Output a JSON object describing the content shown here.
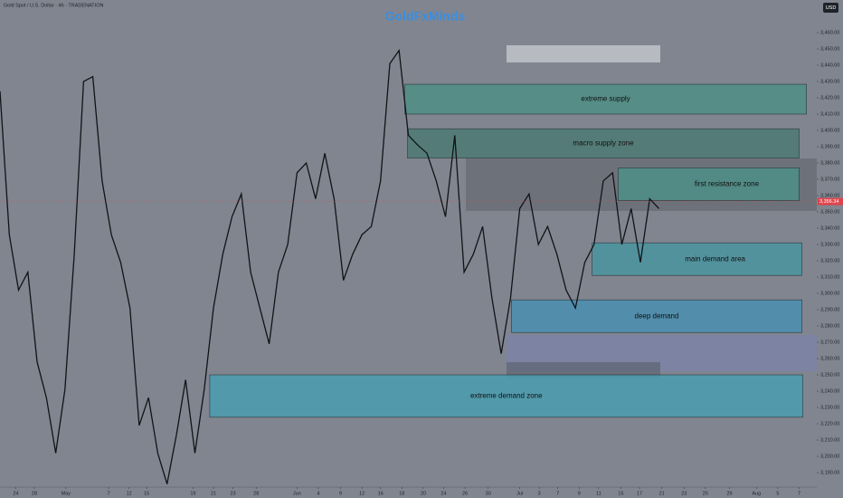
{
  "chart_data": {
    "type": "line",
    "title": "GoldFxMinds",
    "symbol": "Gold Spot / U.S. Dollar · 4h · TRADENATION",
    "currency": "USD",
    "color": "#111316",
    "x": [
      0,
      1,
      2,
      3,
      4,
      5,
      6,
      7,
      8,
      9,
      10,
      11,
      12,
      13,
      14,
      15,
      16,
      17,
      18,
      19,
      20,
      21,
      22,
      23,
      24,
      25,
      26,
      27,
      28,
      29,
      30,
      31,
      32,
      33,
      34,
      35,
      36,
      37,
      38,
      39,
      40,
      41,
      42,
      43,
      44,
      45,
      46,
      47,
      48,
      49,
      50,
      51,
      52,
      53,
      54,
      55,
      56,
      57,
      58,
      59,
      60,
      61,
      62,
      63,
      64,
      65,
      66,
      67,
      68,
      69,
      70,
      71
    ],
    "values": [
      3424,
      3336,
      3302,
      3313,
      3258,
      3236,
      3202,
      3241,
      3324,
      3430,
      3433,
      3369,
      3336,
      3319,
      3291,
      3219,
      3236,
      3202,
      3183,
      3213,
      3247,
      3202,
      3241,
      3291,
      3324,
      3347,
      3361,
      3313,
      3291,
      3269,
      3313,
      3330,
      3374,
      3380,
      3358,
      3386,
      3358,
      3308,
      3324,
      3336,
      3341,
      3369,
      3441,
      3449,
      3397,
      3391,
      3386,
      3369,
      3347,
      3397,
      3313,
      3324,
      3341,
      3297,
      3263,
      3297,
      3352,
      3361,
      3330,
      3341,
      3324,
      3302,
      3291,
      3319,
      3330,
      3369,
      3374,
      3330,
      3352,
      3319,
      3358,
      3352
    ],
    "xlim": [
      0,
      88
    ],
    "ylim": [
      3180,
      3480
    ],
    "xticks": [
      {
        "value": 1.7,
        "label": "24"
      },
      {
        "value": 3.7,
        "label": "28"
      },
      {
        "value": 7.1,
        "label": "May"
      },
      {
        "value": 11.7,
        "label": "7"
      },
      {
        "value": 13.9,
        "label": "12"
      },
      {
        "value": 15.8,
        "label": "15"
      },
      {
        "value": 20.8,
        "label": "19"
      },
      {
        "value": 23,
        "label": "21"
      },
      {
        "value": 25.1,
        "label": "23"
      },
      {
        "value": 27.6,
        "label": "28"
      },
      {
        "value": 32,
        "label": "Jun"
      },
      {
        "value": 34.3,
        "label": "4"
      },
      {
        "value": 36.7,
        "label": "9"
      },
      {
        "value": 39,
        "label": "12"
      },
      {
        "value": 41,
        "label": "16"
      },
      {
        "value": 43.3,
        "label": "18"
      },
      {
        "value": 45.6,
        "label": "20"
      },
      {
        "value": 47.8,
        "label": "24"
      },
      {
        "value": 50.1,
        "label": "26"
      },
      {
        "value": 52.6,
        "label": "30"
      },
      {
        "value": 56,
        "label": "Jul"
      },
      {
        "value": 58.1,
        "label": "3"
      },
      {
        "value": 60.1,
        "label": "7"
      },
      {
        "value": 62.4,
        "label": "9"
      },
      {
        "value": 64.5,
        "label": "11"
      },
      {
        "value": 66.9,
        "label": "15"
      },
      {
        "value": 68.9,
        "label": "17"
      },
      {
        "value": 71.3,
        "label": "21"
      },
      {
        "value": 73.7,
        "label": "23"
      },
      {
        "value": 76,
        "label": "25"
      },
      {
        "value": 78.6,
        "label": "29"
      },
      {
        "value": 81.5,
        "label": "Aug"
      },
      {
        "value": 83.8,
        "label": "5"
      },
      {
        "value": 86.1,
        "label": "7"
      }
    ],
    "yticks": [
      {
        "value": 3190,
        "label": "3,190.00"
      },
      {
        "value": 3200,
        "label": "3,200.00"
      },
      {
        "value": 3210,
        "label": "3,210.00"
      },
      {
        "value": 3220,
        "label": "3,220.00"
      },
      {
        "value": 3230,
        "label": "3,230.00"
      },
      {
        "value": 3240,
        "label": "3,240.00"
      },
      {
        "value": 3250,
        "label": "3,250.00"
      },
      {
        "value": 3260,
        "label": "3,260.00"
      },
      {
        "value": 3270,
        "label": "3,270.00"
      },
      {
        "value": 3280,
        "label": "3,280.00"
      },
      {
        "value": 3290,
        "label": "3,290.00"
      },
      {
        "value": 3300,
        "label": "3,300.00"
      },
      {
        "value": 3310,
        "label": "3,310.00"
      },
      {
        "value": 3320,
        "label": "3,320.00"
      },
      {
        "value": 3330,
        "label": "3,330.00"
      },
      {
        "value": 3340,
        "label": "3,340.00"
      },
      {
        "value": 3350,
        "label": "3,350.00"
      },
      {
        "value": 3360,
        "label": "3,360.00"
      },
      {
        "value": 3370,
        "label": "3,370.00"
      },
      {
        "value": 3380,
        "label": "3,380.00"
      },
      {
        "value": 3390,
        "label": "3,390.00"
      },
      {
        "value": 3400,
        "label": "3,400.00"
      },
      {
        "value": 3410,
        "label": "3,410.00"
      },
      {
        "value": 3420,
        "label": "3,420.00"
      },
      {
        "value": 3430,
        "label": "3,430.00"
      },
      {
        "value": 3440,
        "label": "3,440.00"
      },
      {
        "value": 3450,
        "label": "3,450.00"
      },
      {
        "value": 3460,
        "label": "3,460.00"
      }
    ],
    "last_price": {
      "value": 3356.34,
      "label": "3,356.34",
      "color": "#e0444c"
    },
    "zones": [
      {
        "label": "extreme supply",
        "low": 3410,
        "high": 3428.3,
        "x": [
          43.6,
          86.9
        ],
        "color": "#4f8f86"
      },
      {
        "label": "macro supply zone",
        "low": 3383,
        "high": 3401,
        "x": [
          43.9,
          86.1
        ],
        "color": "#4d7a73"
      },
      {
        "label": "first resistance zone",
        "low": 3357,
        "high": 3377,
        "x": [
          66.6,
          86.1
        ],
        "color": "#4e8f88"
      },
      {
        "label": "main demand area",
        "low": 3311,
        "high": 3331,
        "x": [
          63.8,
          86.4
        ],
        "color": "#4b95a0"
      },
      {
        "label": "deep demand",
        "low": 3276,
        "high": 3296,
        "x": [
          55.1,
          86.4
        ],
        "color": "#4a8fb0"
      },
      {
        "label": "extreme demand zone",
        "low": 3224,
        "high": 3250,
        "x": [
          22.6,
          86.5
        ],
        "color": "#4a9db0"
      }
    ]
  }
}
